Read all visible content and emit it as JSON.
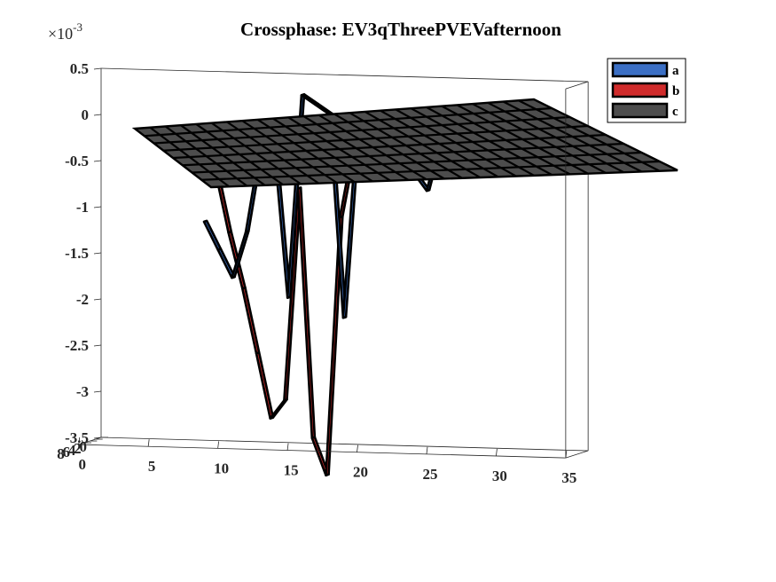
{
  "chart_data": {
    "type": "surface3d",
    "title": "Crossphase: EV3qThreePVEVafternoon",
    "z_exponent_label": "×10",
    "z_exponent_power": "-3",
    "zlim": [
      -3.5,
      0.5
    ],
    "xlim": [
      0,
      35
    ],
    "ylim": [
      0,
      8
    ],
    "z_ticks": [
      "0.5",
      "0",
      "-0.5",
      "-1",
      "-1.5",
      "-2",
      "-2.5",
      "-3",
      "-3.5"
    ],
    "x_ticks": [
      "0",
      "5",
      "10",
      "15",
      "20",
      "25",
      "30",
      "35"
    ],
    "y_ticks": [
      "0",
      "2",
      "4",
      "6",
      "8"
    ],
    "grid": false,
    "legend_position": "top-right",
    "series": [
      {
        "name": "a",
        "color": "#3b6fc4",
        "x": [
          8,
          9,
          10,
          11,
          12,
          13,
          14,
          15,
          16,
          17,
          18,
          19,
          20,
          21,
          22,
          23,
          24,
          25,
          26,
          27,
          28
        ],
        "values": [
          -1.1,
          -1.4,
          -1.7,
          -1.2,
          -0.3,
          -0.2,
          -1.9,
          0.3,
          0.2,
          0.1,
          -2.1,
          0.0,
          -0.1,
          -0.2,
          -0.3,
          -0.5,
          -0.7,
          -0.1,
          -0.2,
          -0.3,
          -0.5
        ]
      },
      {
        "name": "b",
        "color": "#d02b2b",
        "x": [
          9,
          10,
          11,
          12,
          13,
          14,
          15,
          16,
          17,
          18,
          19,
          24,
          25,
          26
        ],
        "values": [
          -0.5,
          -1.2,
          -1.8,
          -2.5,
          -3.2,
          -3.0,
          -0.7,
          -3.4,
          -3.8,
          -1.0,
          -0.2,
          0.0,
          -0.4,
          -0.1
        ]
      },
      {
        "name": "c",
        "color": "#4d4d4d",
        "x": [
          0,
          35
        ],
        "values": [
          0,
          0
        ]
      }
    ]
  }
}
